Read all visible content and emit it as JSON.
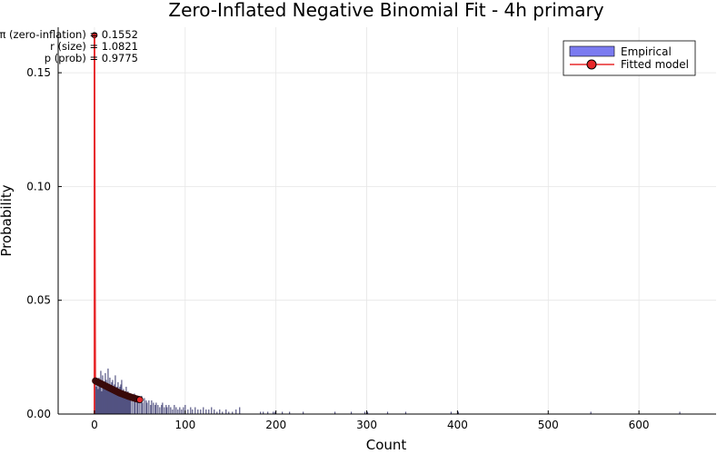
{
  "chart_data": {
    "type": "bar",
    "title": "Zero-Inflated Negative Binomial Fit - 4h primary",
    "xlabel": "Count",
    "ylabel": "Probability",
    "xlim": [
      -40,
      685
    ],
    "ylim": [
      0,
      0.17
    ],
    "xticks": [
      0,
      100,
      200,
      300,
      400,
      500,
      600
    ],
    "yticks": [
      0.0,
      0.05,
      0.1,
      0.15
    ],
    "xtick_labels": [
      "0",
      "100",
      "200",
      "300",
      "400",
      "500",
      "600"
    ],
    "ytick_labels": [
      "0.00",
      "0.05",
      "0.10",
      "0.15"
    ],
    "grid": true,
    "legend_position": "top-right",
    "annotations": [
      "π (zero-inflation) = 0.1552",
      "r (size) = 1.0821",
      "p (prob) = 0.9775"
    ],
    "series": [
      {
        "name": "Empirical",
        "kind": "bar",
        "color": "#7b7bf0",
        "dark_color": "#3a3a70",
        "x": [
          0,
          1,
          2,
          3,
          4,
          5,
          6,
          7,
          8,
          9,
          10,
          11,
          12,
          13,
          14,
          15,
          16,
          17,
          18,
          19,
          20,
          21,
          22,
          23,
          24,
          25,
          26,
          27,
          28,
          29,
          30,
          31,
          32,
          33,
          34,
          35,
          36,
          37,
          38,
          39,
          40,
          42,
          44,
          45,
          47,
          48,
          50,
          52,
          53,
          55,
          57,
          58,
          60,
          62,
          63,
          65,
          67,
          68,
          70,
          72,
          74,
          75,
          77,
          79,
          80,
          82,
          84,
          86,
          88,
          90,
          92,
          94,
          96,
          98,
          100,
          103,
          106,
          108,
          111,
          114,
          117,
          120,
          123,
          126,
          129,
          132,
          135,
          138,
          141,
          145,
          148,
          152,
          156,
          160,
          183,
          186,
          191,
          197,
          199,
          207,
          215,
          230,
          265,
          283,
          298,
          301,
          323,
          343,
          393,
          401,
          547,
          645
        ],
        "values": [
          0.166,
          0.015,
          0.012,
          0.014,
          0.011,
          0.016,
          0.013,
          0.019,
          0.01,
          0.017,
          0.014,
          0.012,
          0.018,
          0.015,
          0.011,
          0.02,
          0.013,
          0.016,
          0.012,
          0.014,
          0.015,
          0.009,
          0.013,
          0.017,
          0.011,
          0.012,
          0.014,
          0.01,
          0.012,
          0.013,
          0.015,
          0.009,
          0.011,
          0.01,
          0.008,
          0.012,
          0.009,
          0.01,
          0.007,
          0.009,
          0.008,
          0.007,
          0.009,
          0.006,
          0.008,
          0.007,
          0.006,
          0.008,
          0.005,
          0.007,
          0.006,
          0.005,
          0.006,
          0.004,
          0.006,
          0.005,
          0.004,
          0.005,
          0.004,
          0.003,
          0.004,
          0.005,
          0.003,
          0.004,
          0.003,
          0.004,
          0.003,
          0.002,
          0.004,
          0.003,
          0.002,
          0.003,
          0.002,
          0.003,
          0.004,
          0.002,
          0.003,
          0.002,
          0.003,
          0.002,
          0.002,
          0.003,
          0.002,
          0.002,
          0.003,
          0.002,
          0.001,
          0.002,
          0.001,
          0.002,
          0.001,
          0.001,
          0.002,
          0.003,
          0.001,
          0.001,
          0.001,
          0.001,
          0.001,
          0.001,
          0.001,
          0.001,
          0.001,
          0.001,
          0.001,
          0.001,
          0.001,
          0.001,
          0.001,
          0.001,
          0.001,
          0.001
        ]
      },
      {
        "name": "Fitted model",
        "kind": "line-markers",
        "color": "#e8282a",
        "marker_color": "#3a0a0a",
        "x": [
          0,
          1,
          2,
          3,
          4,
          5,
          6,
          7,
          8,
          9,
          10,
          11,
          12,
          13,
          14,
          15,
          16,
          17,
          18,
          19,
          20,
          21,
          22,
          23,
          24,
          25,
          26,
          27,
          28,
          29,
          30,
          31,
          32,
          33,
          34,
          35,
          36,
          37,
          38,
          39,
          40,
          41,
          42,
          43,
          44,
          45,
          46,
          47,
          48,
          49,
          50
        ],
        "values": [
          0.1665,
          0.0146,
          0.0144,
          0.0142,
          0.014,
          0.0138,
          0.0136,
          0.0134,
          0.0132,
          0.013,
          0.0128,
          0.0126,
          0.0124,
          0.0122,
          0.012,
          0.0118,
          0.0116,
          0.0114,
          0.0112,
          0.011,
          0.0108,
          0.0106,
          0.0104,
          0.0102,
          0.01,
          0.0098,
          0.0096,
          0.0094,
          0.0092,
          0.0091,
          0.0089,
          0.0088,
          0.0086,
          0.0085,
          0.0083,
          0.0082,
          0.008,
          0.0079,
          0.0077,
          0.0076,
          0.0075,
          0.0073,
          0.0072,
          0.0071,
          0.007,
          0.0068,
          0.0067,
          0.0066,
          0.0065,
          0.0064,
          0.0063
        ]
      }
    ]
  }
}
